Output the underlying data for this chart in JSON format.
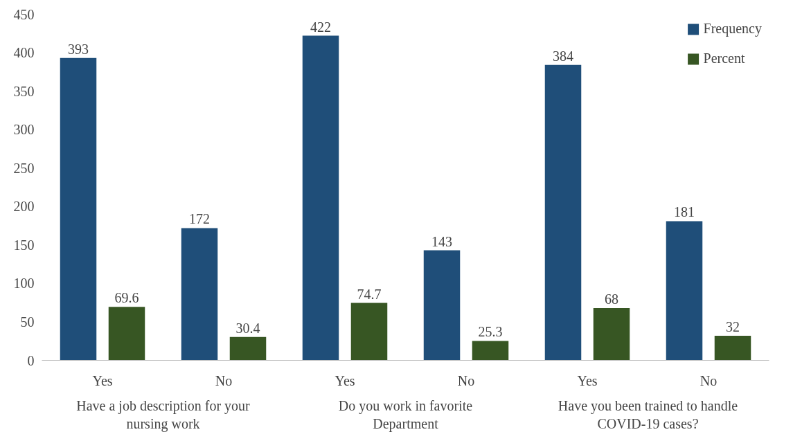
{
  "chart_data": {
    "type": "bar",
    "categories": [
      "Yes",
      "No",
      "Yes",
      "No",
      "Yes",
      "No"
    ],
    "series": [
      {
        "name": "Frequency",
        "color": "#1f4e79",
        "values": [
          393,
          172,
          422,
          143,
          384,
          181
        ]
      },
      {
        "name": "Percent",
        "color": "#375623",
        "values": [
          69.6,
          30.4,
          74.7,
          25.3,
          68,
          32
        ]
      }
    ],
    "annotations": [
      "Have a job description for your nursing work",
      "Do you work in favorite Department",
      "Have you been trained to handle COVID-19 cases?"
    ],
    "ylim": [
      0,
      450
    ],
    "yticks": [
      0,
      50,
      100,
      150,
      200,
      250,
      300,
      350,
      400,
      450
    ],
    "data_labels": true,
    "legend": "top right",
    "grid": false
  }
}
